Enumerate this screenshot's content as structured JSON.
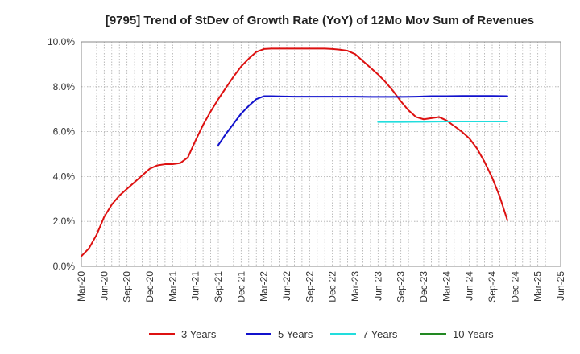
{
  "chart_data": {
    "type": "line",
    "title": "[9795]  Trend of StDev of Growth Rate (YoY) of 12Mo Mov Sum of Revenues",
    "xlabel": "",
    "ylabel": "",
    "x_ticks": [
      "Mar-20",
      "Jun-20",
      "Sep-20",
      "Dec-20",
      "Mar-21",
      "Jun-21",
      "Sep-21",
      "Dec-21",
      "Mar-22",
      "Jun-22",
      "Sep-22",
      "Dec-22",
      "Mar-23",
      "Jun-23",
      "Sep-23",
      "Dec-23",
      "Mar-24",
      "Jun-24",
      "Sep-24",
      "Dec-24",
      "Mar-25",
      "Jun-25"
    ],
    "y_ticks": [
      "0.0%",
      "2.0%",
      "4.0%",
      "6.0%",
      "8.0%",
      "10.0%"
    ],
    "y_tick_values": [
      0,
      2,
      4,
      6,
      8,
      10
    ],
    "ylim": [
      0,
      10
    ],
    "x_range_months": [
      0,
      63
    ],
    "grid": "dotted",
    "legend_position": "bottom",
    "series": [
      {
        "name": "3 Years",
        "color": "#dd1111",
        "points": [
          [
            0,
            0.45
          ],
          [
            1,
            0.8
          ],
          [
            2,
            1.4
          ],
          [
            3,
            2.2
          ],
          [
            4,
            2.75
          ],
          [
            5,
            3.15
          ],
          [
            6,
            3.45
          ],
          [
            7,
            3.75
          ],
          [
            8,
            4.05
          ],
          [
            9,
            4.35
          ],
          [
            10,
            4.5
          ],
          [
            11,
            4.55
          ],
          [
            12,
            4.55
          ],
          [
            13,
            4.6
          ],
          [
            14,
            4.85
          ],
          [
            15,
            5.6
          ],
          [
            16,
            6.3
          ],
          [
            17,
            6.9
          ],
          [
            18,
            7.45
          ],
          [
            19,
            7.95
          ],
          [
            20,
            8.45
          ],
          [
            21,
            8.9
          ],
          [
            22,
            9.25
          ],
          [
            23,
            9.55
          ],
          [
            24,
            9.68
          ],
          [
            25,
            9.7
          ],
          [
            26,
            9.7
          ],
          [
            27,
            9.7
          ],
          [
            28,
            9.7
          ],
          [
            29,
            9.7
          ],
          [
            30,
            9.7
          ],
          [
            31,
            9.7
          ],
          [
            32,
            9.7
          ],
          [
            33,
            9.68
          ],
          [
            34,
            9.65
          ],
          [
            35,
            9.6
          ],
          [
            36,
            9.45
          ],
          [
            37,
            9.15
          ],
          [
            38,
            8.85
          ],
          [
            39,
            8.55
          ],
          [
            40,
            8.2
          ],
          [
            41,
            7.8
          ],
          [
            42,
            7.35
          ],
          [
            43,
            6.95
          ],
          [
            44,
            6.65
          ],
          [
            45,
            6.55
          ],
          [
            46,
            6.6
          ],
          [
            47,
            6.65
          ],
          [
            48,
            6.5
          ],
          [
            49,
            6.25
          ],
          [
            50,
            6.0
          ],
          [
            51,
            5.7
          ],
          [
            52,
            5.25
          ],
          [
            53,
            4.65
          ],
          [
            54,
            3.95
          ],
          [
            55,
            3.1
          ],
          [
            56,
            2.05
          ]
        ]
      },
      {
        "name": "5 Years",
        "color": "#1111cc",
        "points": [
          [
            18,
            5.4
          ],
          [
            19,
            5.9
          ],
          [
            20,
            6.35
          ],
          [
            21,
            6.8
          ],
          [
            22,
            7.15
          ],
          [
            23,
            7.45
          ],
          [
            24,
            7.58
          ],
          [
            25,
            7.58
          ],
          [
            26,
            7.57
          ],
          [
            28,
            7.56
          ],
          [
            30,
            7.56
          ],
          [
            32,
            7.56
          ],
          [
            34,
            7.56
          ],
          [
            36,
            7.56
          ],
          [
            38,
            7.55
          ],
          [
            40,
            7.55
          ],
          [
            42,
            7.55
          ],
          [
            44,
            7.56
          ],
          [
            46,
            7.58
          ],
          [
            48,
            7.58
          ],
          [
            50,
            7.59
          ],
          [
            52,
            7.59
          ],
          [
            54,
            7.59
          ],
          [
            56,
            7.58
          ]
        ]
      },
      {
        "name": "7 Years",
        "color": "#22dddd",
        "points": [
          [
            39,
            6.43
          ],
          [
            42,
            6.43
          ],
          [
            45,
            6.44
          ],
          [
            48,
            6.45
          ],
          [
            51,
            6.45
          ],
          [
            54,
            6.45
          ],
          [
            56,
            6.45
          ]
        ]
      },
      {
        "name": "10 Years",
        "color": "#228822",
        "points": []
      }
    ]
  }
}
